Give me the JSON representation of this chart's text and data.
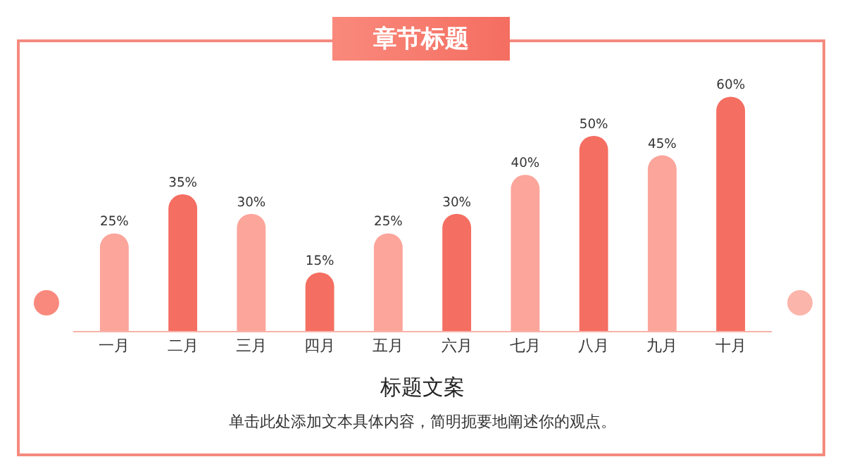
{
  "chart_data": {
    "type": "bar",
    "title": "章节标题",
    "categories": [
      "一月",
      "二月",
      "三月",
      "四月",
      "五月",
      "六月",
      "七月",
      "八月",
      "九月",
      "十月"
    ],
    "values": [
      25,
      35,
      30,
      15,
      25,
      30,
      40,
      50,
      45,
      60
    ],
    "colors": [
      "#fca59b",
      "#f46e61",
      "#fca59b",
      "#f46e61",
      "#fca59b",
      "#f46e61",
      "#fca59b",
      "#f46e61",
      "#fca59b",
      "#f46e61"
    ],
    "value_labels": [
      "25%",
      "35%",
      "30%",
      "15%",
      "25%",
      "30%",
      "40%",
      "50%",
      "45%",
      "60%"
    ],
    "tick_labels": "x",
    "grid": false,
    "annotations": [
      "标题文案",
      "单击此处添加文本具体内容，简明扼要地阐述你的观点。"
    ]
  }
}
